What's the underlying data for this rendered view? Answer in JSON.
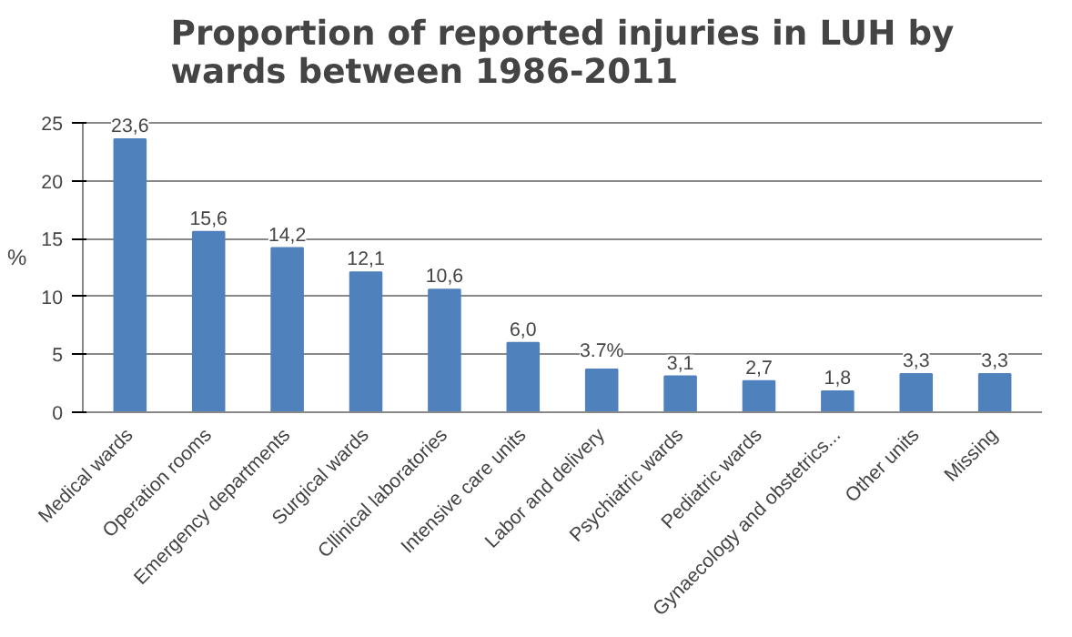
{
  "chart_data": {
    "type": "bar",
    "title": "Proportion of reported injuries in LUH by wards between 1986-2011",
    "ylabel": "%",
    "categories": [
      "Medical wards",
      "Operation rooms",
      "Emergency departments",
      "Surgical wards",
      "Cllinical laboratories",
      "Intensive care units",
      "Labor and delivery",
      "Psychiatric wards",
      "Pediatric wards",
      "Gynaecology and obstetrics...",
      "Other units",
      "Missing"
    ],
    "values": [
      23.6,
      15.6,
      14.2,
      12.1,
      10.6,
      6.0,
      3.7,
      3.1,
      2.7,
      1.8,
      3.3,
      3.3
    ],
    "value_labels": [
      "23,6",
      "15,6",
      "14,2",
      "12,1",
      "10,6",
      "6,0",
      "3.7%",
      "3,1",
      "2,7",
      "1,8",
      "3,3",
      "3,3"
    ],
    "color": "#4f81bd",
    "ylim": [
      0,
      25
    ],
    "yticks": [
      0,
      5,
      10,
      15,
      20,
      25
    ],
    "grid": "y"
  }
}
